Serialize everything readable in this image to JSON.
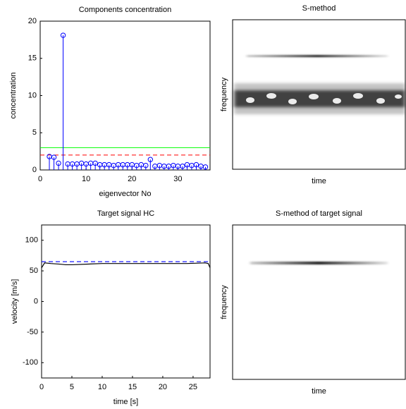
{
  "chart_data": [
    {
      "type": "stem",
      "title": "Components concentration",
      "x_label": "eigenvector No",
      "y_label": "concentration",
      "xlim": [
        0,
        37
      ],
      "xticks": [
        0,
        10,
        20,
        30
      ],
      "ylim": [
        0,
        20
      ],
      "yticks": [
        0,
        5,
        10,
        15,
        20
      ],
      "color": "#0000ff",
      "x": [
        2,
        3,
        4,
        5,
        6,
        7,
        8,
        9,
        10,
        11,
        12,
        13,
        14,
        15,
        16,
        17,
        18,
        19,
        20,
        21,
        22,
        23,
        24,
        25,
        26,
        27,
        28,
        29,
        30,
        31,
        32,
        33,
        34,
        35,
        36
      ],
      "values": [
        1.8,
        1.7,
        0.9,
        18.1,
        0.8,
        0.8,
        0.8,
        0.9,
        0.8,
        0.9,
        0.9,
        0.7,
        0.7,
        0.7,
        0.6,
        0.7,
        0.7,
        0.7,
        0.7,
        0.6,
        0.7,
        0.6,
        1.4,
        0.5,
        0.6,
        0.5,
        0.5,
        0.6,
        0.5,
        0.5,
        0.7,
        0.6,
        0.7,
        0.5,
        0.4
      ],
      "hlines": [
        {
          "value": 3,
          "color": "#00ff00",
          "style": "solid"
        },
        {
          "value": 2,
          "color": "#ff0000",
          "style": "dashed"
        }
      ]
    },
    {
      "type": "image",
      "title": "S-method",
      "x_label": "time",
      "y_label": "frequency"
    },
    {
      "type": "line",
      "title": "Target signal HC",
      "x_label": "time [s]",
      "y_label": "velocity [m/s]",
      "xlim": [
        0,
        27.8
      ],
      "xticks": [
        0,
        5,
        10,
        15,
        20,
        25
      ],
      "ylim": [
        -125,
        125
      ],
      "yticks": [
        -100,
        -50,
        0,
        50,
        100
      ],
      "series": [
        {
          "color": "#000000",
          "style": "solid",
          "x": [
            0,
            0.5,
            1.5,
            3,
            4,
            5,
            10,
            24,
            27,
            27.5,
            27.8
          ],
          "values": [
            55,
            63,
            62,
            61,
            60,
            60,
            62,
            62,
            63,
            62,
            55
          ]
        },
        {
          "color": "#0000ff",
          "style": "dashed",
          "x": [
            0,
            27.8
          ],
          "values": [
            65,
            65
          ]
        }
      ]
    },
    {
      "type": "image",
      "title": "S-method of target signal",
      "x_label": "time",
      "y_label": "frequency"
    }
  ]
}
